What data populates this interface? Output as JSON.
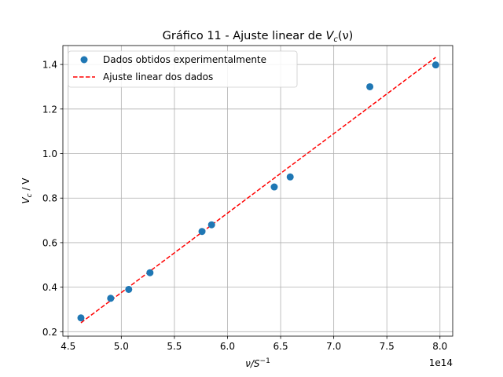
{
  "chart_data": {
    "type": "scatter",
    "title_prefix": "Gráfico 11 - Ajuste linear de ",
    "title_math": "V",
    "title_math_sub": "c",
    "title_math_suffix": "(ν)",
    "xlabel_main": "ν/S",
    "xlabel_sup": "−1",
    "ylabel_main": "V",
    "ylabel_sub": "c",
    "ylabel_suffix": " / V",
    "x_offset_label": "1e14",
    "x_scale": 100000000000000.0,
    "xlim": [
      4.45,
      8.12
    ],
    "ylim": [
      0.18,
      1.485
    ],
    "xticks": [
      4.5,
      5.0,
      5.5,
      6.0,
      6.5,
      7.0,
      7.5,
      8.0
    ],
    "xtick_labels": [
      "4.5",
      "5.0",
      "5.5",
      "6.0",
      "6.5",
      "7.0",
      "7.5",
      "8.0"
    ],
    "yticks": [
      0.2,
      0.4,
      0.6,
      0.8,
      1.0,
      1.2,
      1.4
    ],
    "ytick_labels": [
      "0.2",
      "0.4",
      "0.6",
      "0.8",
      "1.0",
      "1.2",
      "1.4"
    ],
    "grid": true,
    "legend_position": "top-left",
    "series": [
      {
        "name": "Dados obtidos experimentalmente",
        "kind": "scatter",
        "color": "#1f77b4",
        "x": [
          4.62,
          4.9,
          5.07,
          5.27,
          5.76,
          5.85,
          6.44,
          6.59,
          7.34,
          7.96
        ],
        "y": [
          0.262,
          0.35,
          0.39,
          0.465,
          0.65,
          0.68,
          0.85,
          0.895,
          1.3,
          1.398
        ]
      },
      {
        "name": "Ajuste linear dos dados",
        "kind": "line",
        "style": "dashed",
        "color": "#ff0000",
        "x": [
          4.62,
          7.96
        ],
        "y": [
          0.24,
          1.432
        ]
      }
    ]
  }
}
